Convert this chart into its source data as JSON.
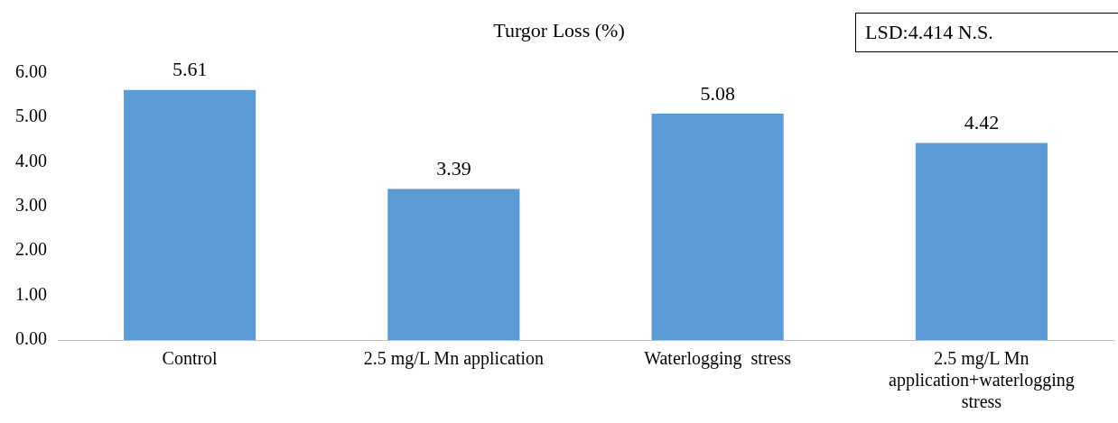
{
  "chart_data": {
    "type": "bar",
    "title": "Turgor Loss (%)",
    "categories": [
      "Control",
      "2.5 mg/L Mn application",
      "Waterlogging  stress",
      "2.5 mg/L Mn application+waterlogging stress"
    ],
    "values": [
      5.61,
      3.39,
      5.08,
      4.42
    ],
    "color": "#5b9bd5",
    "ylim": [
      0,
      6
    ],
    "yticks": [
      {
        "value": 0,
        "label": "0.00"
      },
      {
        "value": 1,
        "label": "1.00"
      },
      {
        "value": 2,
        "label": "2.00"
      },
      {
        "value": 3,
        "label": "3.00"
      },
      {
        "value": 4,
        "label": "4.00"
      },
      {
        "value": 5,
        "label": "5.00"
      },
      {
        "value": 6,
        "label": "6.00"
      }
    ],
    "data_labels": true,
    "grid": false,
    "legend": false,
    "annotations": [
      "LSD:4.414 N.S."
    ]
  }
}
